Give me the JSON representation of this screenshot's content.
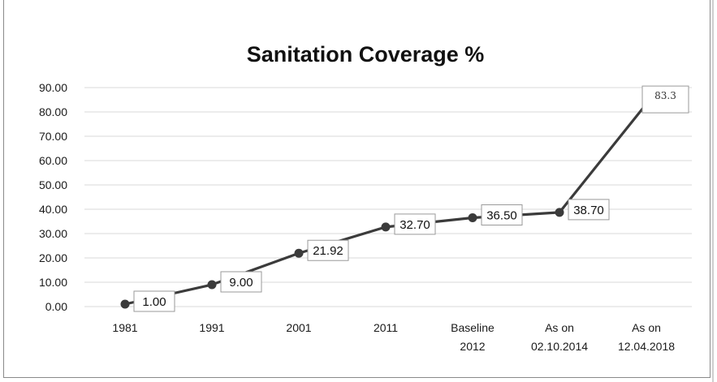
{
  "chart_data": {
    "type": "line",
    "title": "Sanitation Coverage %",
    "xlabel": "",
    "ylabel": "",
    "categories": [
      [
        "1981"
      ],
      [
        "1991"
      ],
      [
        "2001"
      ],
      [
        "2011"
      ],
      [
        "Baseline",
        "2012"
      ],
      [
        "As on",
        "02.10.2014"
      ],
      [
        "As on",
        "12.04.2018"
      ]
    ],
    "series": [
      {
        "values": [
          1.0,
          9.0,
          21.92,
          32.7,
          36.5,
          38.7,
          83.3
        ],
        "labels": [
          "1.00",
          "9.00",
          "21.92",
          "32.70",
          "36.50",
          "38.70",
          "83.3"
        ]
      }
    ],
    "ylim": [
      0,
      90
    ],
    "yticks": [
      "0.00",
      "10.00",
      "20.00",
      "30.00",
      "40.00",
      "50.00",
      "60.00",
      "70.00",
      "80.00",
      "90.00"
    ],
    "grid": true,
    "legend": "none",
    "colors": {
      "line": "#3b3b3b",
      "grid": "#d9d9d9"
    }
  }
}
